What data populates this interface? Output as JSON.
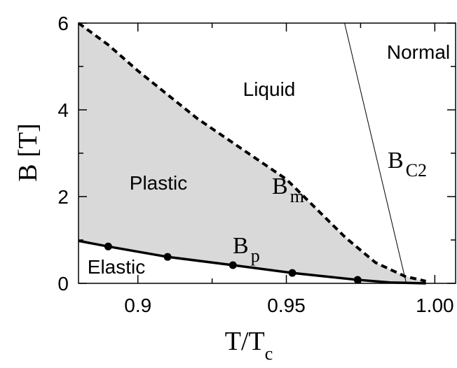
{
  "chart_data": {
    "type": "line",
    "xlabel": {
      "text": "T/T",
      "sub": "c"
    },
    "ylabel": "B [T]",
    "xlim": [
      0.88,
      1.007
    ],
    "ylim": [
      0,
      6
    ],
    "xticks": [
      0.9,
      0.95,
      {
        "value": 1,
        "label": "1.00"
      }
    ],
    "xminor": [
      0.925,
      0.975
    ],
    "yticks": [
      0,
      2,
      4,
      6
    ],
    "yminor": [
      1,
      3,
      5
    ],
    "series": [
      {
        "name": "B",
        "sub": "m",
        "color": "#000000",
        "style": "dashed",
        "x": [
          0.88,
          0.89,
          0.9,
          0.92,
          0.95,
          0.97,
          0.98,
          0.99,
          0.997
        ],
        "values": [
          6,
          5.5,
          4.9,
          3.8,
          2.4,
          1.05,
          0.48,
          0.16,
          0.05
        ]
      },
      {
        "name": "B",
        "sub": "p",
        "color": "#000000",
        "style": "solid",
        "x": [
          0.88,
          0.89,
          0.91,
          0.932,
          0.952,
          0.974,
          0.985,
          0.997
        ],
        "values": [
          0.98,
          0.85,
          0.61,
          0.42,
          0.24,
          0.08,
          0.02,
          0
        ]
      },
      {
        "name": "B",
        "sub": "C2",
        "color": "#000000",
        "style": "thin",
        "x": [
          0.9696,
          0.9904
        ],
        "values": [
          6,
          0
        ]
      }
    ],
    "markers": {
      "x": [
        0.89,
        0.91,
        0.932,
        0.952,
        0.974
      ],
      "values": [
        0.85,
        0.61,
        0.42,
        0.24,
        0.08
      ]
    },
    "fill_color": "#d9d9d9",
    "annotations": [
      "Normal",
      "Liquid",
      "Plastic",
      "Elastic"
    ]
  }
}
